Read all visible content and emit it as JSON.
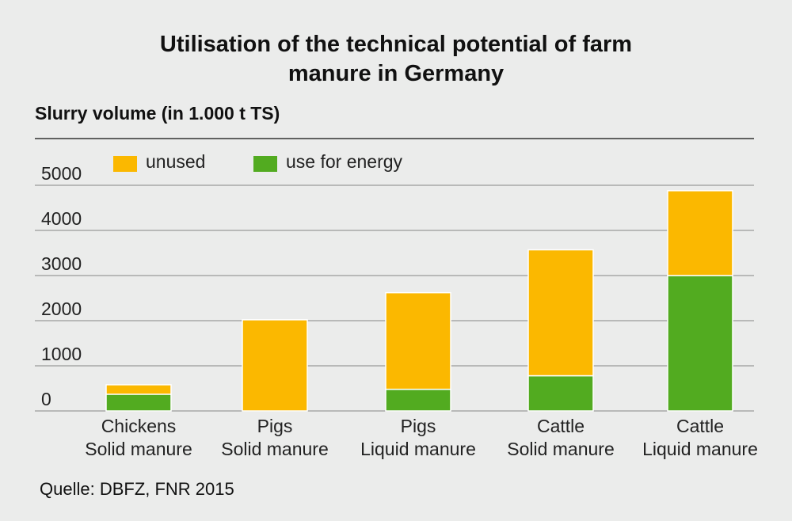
{
  "chart_data": {
    "type": "bar",
    "stacked": true,
    "title_lines": [
      "Utilisation of the technical potential of farm",
      "manure in Germany"
    ],
    "ylabel": "Slurry volume (in 1.000 t TS)",
    "ylim": [
      0,
      6000
    ],
    "yticks": [
      0,
      1000,
      2000,
      3000,
      4000,
      5000
    ],
    "grid": true,
    "legend_position": "top-left",
    "categories": [
      [
        "Chickens",
        "Solid manure"
      ],
      [
        "Pigs",
        "Solid manure"
      ],
      [
        "Pigs",
        "Liquid manure"
      ],
      [
        "Cattle",
        "Solid manure"
      ],
      [
        "Cattle",
        "Liquid manure"
      ]
    ],
    "series": [
      {
        "name": "use for energy",
        "color": "#52ab20",
        "values": [
          370,
          0,
          480,
          780,
          3000
        ]
      },
      {
        "name": "unused",
        "color": "#fbb800",
        "values": [
          210,
          2020,
          2140,
          2790,
          1880
        ]
      }
    ],
    "legend_order": [
      "unused",
      "use for energy"
    ],
    "source": "Quelle: DBFZ, FNR 2015"
  }
}
